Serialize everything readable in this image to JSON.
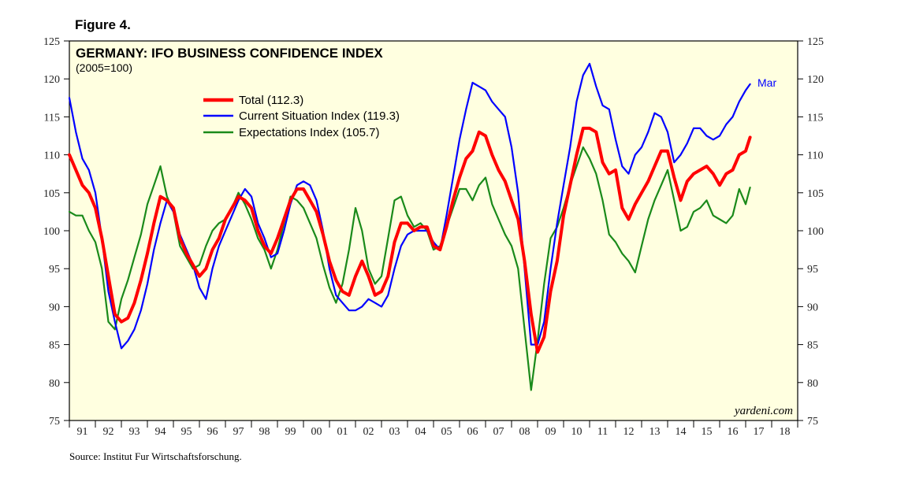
{
  "figure_label": "Figure 4.",
  "source": "Source:  Institut Fur Wirtschaftsforschung.",
  "chart_data": {
    "type": "line",
    "title": "GERMANY: IFO BUSINESS CONFIDENCE INDEX",
    "subtitle": "(2005=100)",
    "xlabel": "",
    "ylabel": "",
    "ylim": [
      75,
      125
    ],
    "y_ticks": [
      "75",
      "80",
      "85",
      "90",
      "95",
      "100",
      "105",
      "110",
      "115",
      "120",
      "125"
    ],
    "x_range": [
      1991,
      2019
    ],
    "x_tick_labels": [
      "91",
      "92",
      "93",
      "94",
      "95",
      "96",
      "97",
      "98",
      "99",
      "00",
      "01",
      "02",
      "03",
      "04",
      "05",
      "06",
      "07",
      "08",
      "09",
      "10",
      "11",
      "12",
      "13",
      "14",
      "15",
      "16",
      "17",
      "18"
    ],
    "end_annotation": "Mar",
    "watermark": "yardeni.com",
    "legend_position": "upper-middle",
    "colors": {
      "background": "#ffffe0",
      "total": "#ff0000",
      "current": "#0000ff",
      "expectations": "#1a8a1a",
      "annotation": "#0000ff"
    },
    "series": [
      {
        "name": "Total",
        "legend_label": "Total (112.3)",
        "x": [
          1991.0,
          1991.25,
          1991.5,
          1991.75,
          1992.0,
          1992.25,
          1992.5,
          1992.75,
          1993.0,
          1993.25,
          1993.5,
          1993.75,
          1994.0,
          1994.25,
          1994.5,
          1994.75,
          1995.0,
          1995.25,
          1995.5,
          1995.75,
          1996.0,
          1996.25,
          1996.5,
          1996.75,
          1997.0,
          1997.25,
          1997.5,
          1997.75,
          1998.0,
          1998.25,
          1998.5,
          1998.75,
          1999.0,
          1999.25,
          1999.5,
          1999.75,
          2000.0,
          2000.25,
          2000.5,
          2000.75,
          2001.0,
          2001.25,
          2001.5,
          2001.75,
          2002.0,
          2002.25,
          2002.5,
          2002.75,
          2003.0,
          2003.25,
          2003.5,
          2003.75,
          2004.0,
          2004.25,
          2004.5,
          2004.75,
          2005.0,
          2005.25,
          2005.5,
          2005.75,
          2006.0,
          2006.25,
          2006.5,
          2006.75,
          2007.0,
          2007.25,
          2007.5,
          2007.75,
          2008.0,
          2008.25,
          2008.5,
          2008.75,
          2009.0,
          2009.25,
          2009.5,
          2009.75,
          2010.0,
          2010.25,
          2010.5,
          2010.75,
          2011.0,
          2011.25,
          2011.5,
          2011.75,
          2012.0,
          2012.25,
          2012.5,
          2012.75,
          2013.0,
          2013.25,
          2013.5,
          2013.75,
          2014.0,
          2014.25,
          2014.5,
          2014.75,
          2015.0,
          2015.25,
          2015.5,
          2015.75,
          2016.0,
          2016.25,
          2016.5,
          2016.75,
          2017.0,
          2017.17
        ],
        "values": [
          110.0,
          108.0,
          106.0,
          105.0,
          103.0,
          99.0,
          94.0,
          89.0,
          88.0,
          88.5,
          90.5,
          93.5,
          97.0,
          101.0,
          104.5,
          104.0,
          103.0,
          99.0,
          97.0,
          95.5,
          94.0,
          95.0,
          97.5,
          99.0,
          101.5,
          103.0,
          104.5,
          104.0,
          103.0,
          100.0,
          98.0,
          97.0,
          99.0,
          101.5,
          104.0,
          105.5,
          105.5,
          104.0,
          102.5,
          99.5,
          96.0,
          93.5,
          92.0,
          91.5,
          94.0,
          96.0,
          94.0,
          91.5,
          92.0,
          94.0,
          98.5,
          101.0,
          101.0,
          100.0,
          100.5,
          100.5,
          98.0,
          97.5,
          100.5,
          104.0,
          107.0,
          109.5,
          110.5,
          113.0,
          112.5,
          110.0,
          108.0,
          106.5,
          104.0,
          101.5,
          96.0,
          89.0,
          84.0,
          86.0,
          92.0,
          96.0,
          102.0,
          106.0,
          110.0,
          113.5,
          113.5,
          113.0,
          109.0,
          107.5,
          108.0,
          103.0,
          101.5,
          103.5,
          105.0,
          106.5,
          108.5,
          110.5,
          110.5,
          107.0,
          104.0,
          106.5,
          107.5,
          108.0,
          108.5,
          107.5,
          106.0,
          107.5,
          108.0,
          110.0,
          110.5,
          112.3
        ]
      },
      {
        "name": "Current Situation Index",
        "legend_label": "Current Situation Index (119.3)",
        "x": [
          1991.0,
          1991.25,
          1991.5,
          1991.75,
          1992.0,
          1992.25,
          1992.5,
          1992.75,
          1993.0,
          1993.25,
          1993.5,
          1993.75,
          1994.0,
          1994.25,
          1994.5,
          1994.75,
          1995.0,
          1995.25,
          1995.5,
          1995.75,
          1996.0,
          1996.25,
          1996.5,
          1996.75,
          1997.0,
          1997.25,
          1997.5,
          1997.75,
          1998.0,
          1998.25,
          1998.5,
          1998.75,
          1999.0,
          1999.25,
          1999.5,
          1999.75,
          2000.0,
          2000.25,
          2000.5,
          2000.75,
          2001.0,
          2001.25,
          2001.5,
          2001.75,
          2002.0,
          2002.25,
          2002.5,
          2002.75,
          2003.0,
          2003.25,
          2003.5,
          2003.75,
          2004.0,
          2004.25,
          2004.5,
          2004.75,
          2005.0,
          2005.25,
          2005.5,
          2005.75,
          2006.0,
          2006.25,
          2006.5,
          2006.75,
          2007.0,
          2007.25,
          2007.5,
          2007.75,
          2008.0,
          2008.25,
          2008.5,
          2008.75,
          2009.0,
          2009.25,
          2009.5,
          2009.75,
          2010.0,
          2010.25,
          2010.5,
          2010.75,
          2011.0,
          2011.25,
          2011.5,
          2011.75,
          2012.0,
          2012.25,
          2012.5,
          2012.75,
          2013.0,
          2013.25,
          2013.5,
          2013.75,
          2014.0,
          2014.25,
          2014.5,
          2014.75,
          2015.0,
          2015.25,
          2015.5,
          2015.75,
          2016.0,
          2016.25,
          2016.5,
          2016.75,
          2017.0,
          2017.17
        ],
        "values": [
          117.5,
          113.0,
          109.5,
          108.0,
          105.0,
          99.0,
          92.0,
          88.0,
          84.5,
          85.5,
          87.0,
          89.5,
          93.0,
          97.5,
          101.0,
          104.0,
          102.5,
          99.5,
          97.5,
          95.5,
          92.5,
          91.0,
          95.0,
          98.0,
          100.0,
          102.0,
          104.0,
          105.5,
          104.5,
          101.0,
          99.0,
          96.5,
          97.0,
          100.0,
          103.5,
          106.0,
          106.5,
          106.0,
          104.0,
          100.0,
          95.0,
          91.5,
          90.5,
          89.5,
          89.5,
          90.0,
          91.0,
          90.5,
          90.0,
          91.5,
          95.0,
          98.0,
          99.5,
          100.0,
          100.0,
          100.0,
          98.5,
          97.5,
          102.0,
          107.0,
          112.0,
          116.0,
          119.5,
          119.0,
          118.5,
          117.0,
          116.0,
          115.0,
          111.0,
          105.0,
          95.0,
          85.0,
          85.0,
          88.0,
          95.0,
          101.0,
          106.0,
          111.0,
          117.0,
          120.5,
          122.0,
          119.0,
          116.5,
          116.0,
          112.0,
          108.5,
          107.5,
          110.0,
          111.0,
          113.0,
          115.5,
          115.0,
          113.0,
          109.0,
          110.0,
          111.5,
          113.5,
          113.5,
          112.5,
          112.0,
          112.5,
          114.0,
          115.0,
          117.0,
          118.5,
          119.3
        ]
      },
      {
        "name": "Expectations Index",
        "legend_label": "Expectations Index (105.7)",
        "x": [
          1991.0,
          1991.25,
          1991.5,
          1991.75,
          1992.0,
          1992.25,
          1992.5,
          1992.75,
          1993.0,
          1993.25,
          1993.5,
          1993.75,
          1994.0,
          1994.25,
          1994.5,
          1994.75,
          1995.0,
          1995.25,
          1995.5,
          1995.75,
          1996.0,
          1996.25,
          1996.5,
          1996.75,
          1997.0,
          1997.25,
          1997.5,
          1997.75,
          1998.0,
          1998.25,
          1998.5,
          1998.75,
          1999.0,
          1999.25,
          1999.5,
          1999.75,
          2000.0,
          2000.25,
          2000.5,
          2000.75,
          2001.0,
          2001.25,
          2001.5,
          2001.75,
          2002.0,
          2002.25,
          2002.5,
          2002.75,
          2003.0,
          2003.25,
          2003.5,
          2003.75,
          2004.0,
          2004.25,
          2004.5,
          2004.75,
          2005.0,
          2005.25,
          2005.5,
          2005.75,
          2006.0,
          2006.25,
          2006.5,
          2006.75,
          2007.0,
          2007.25,
          2007.5,
          2007.75,
          2008.0,
          2008.25,
          2008.5,
          2008.75,
          2009.0,
          2009.25,
          2009.5,
          2009.75,
          2010.0,
          2010.25,
          2010.5,
          2010.75,
          2011.0,
          2011.25,
          2011.5,
          2011.75,
          2012.0,
          2012.25,
          2012.5,
          2012.75,
          2013.0,
          2013.25,
          2013.5,
          2013.75,
          2014.0,
          2014.25,
          2014.5,
          2014.75,
          2015.0,
          2015.25,
          2015.5,
          2015.75,
          2016.0,
          2016.25,
          2016.5,
          2016.75,
          2017.0,
          2017.17
        ],
        "values": [
          102.5,
          102.0,
          102.0,
          100.0,
          98.5,
          95.0,
          88.0,
          87.0,
          91.0,
          93.5,
          96.5,
          99.5,
          103.5,
          106.0,
          108.5,
          104.5,
          102.5,
          98.0,
          96.5,
          95.0,
          95.5,
          98.0,
          100.0,
          101.0,
          101.5,
          103.0,
          105.0,
          103.5,
          101.5,
          99.0,
          97.5,
          95.0,
          97.5,
          101.0,
          104.5,
          104.0,
          103.0,
          101.0,
          99.0,
          95.5,
          92.5,
          90.5,
          93.0,
          97.5,
          103.0,
          100.0,
          95.0,
          93.0,
          94.0,
          99.0,
          104.0,
          104.5,
          102.0,
          100.5,
          101.0,
          100.0,
          97.5,
          98.0,
          100.5,
          103.0,
          105.5,
          105.5,
          104.0,
          106.0,
          107.0,
          103.5,
          101.5,
          99.5,
          98.0,
          95.0,
          87.0,
          79.0,
          85.5,
          93.0,
          99.0,
          100.5,
          103.0,
          106.0,
          108.5,
          111.0,
          109.5,
          107.5,
          104.0,
          99.5,
          98.5,
          97.0,
          96.0,
          94.5,
          98.0,
          101.5,
          104.0,
          106.0,
          108.0,
          104.0,
          100.0,
          100.5,
          102.5,
          103.0,
          104.0,
          102.0,
          101.5,
          101.0,
          102.0,
          105.5,
          103.5,
          105.7
        ]
      }
    ]
  }
}
